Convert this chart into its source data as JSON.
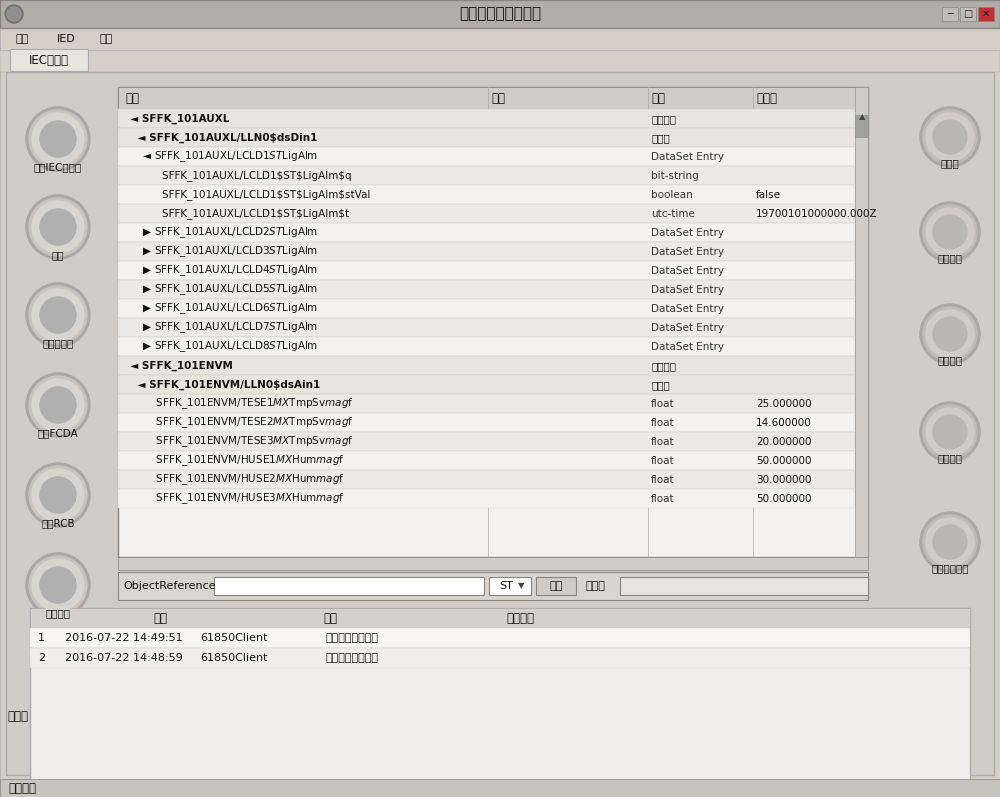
{
  "title": "智能变电站监控系统",
  "bg_color": "#d4d0c8",
  "content_bg": "#e8e4e0",
  "white": "#ffffff",
  "light_gray": "#f0eeec",
  "mid_gray": "#c8c4c0",
  "dark_gray": "#888480",
  "tab_label": "IEC客户端",
  "menu_items": [
    "开始",
    "IED",
    "功能"
  ],
  "left_btn_labels": [
    "连接IEC服务端",
    "刷新",
    "修改数据树",
    "修改FCDA",
    "修改RCB",
    "关闭连接"
  ],
  "right_btn_labels": [
    "测试项",
    "配置联动",
    "订阅告警",
    "反向测试",
    "导出测试报告"
  ],
  "table_headers": [
    "名称",
    "备注",
    "类型",
    "当前值"
  ],
  "table_rows": [
    [
      "  ◄ SFFK_101AUXL",
      "",
      "逻辑设备",
      ""
    ],
    [
      "    ◄ SFFK_101AUXL/LLN0$dsDin1",
      "",
      "数据集",
      ""
    ],
    [
      "      ◄ SFFK_101AUXL/LCLD1$ST$LigAlm",
      "",
      "DataSet Entry",
      ""
    ],
    [
      "            SFFK_101AUXL/LCLD1$ST$LigAlm$q",
      "",
      "bit-string",
      ""
    ],
    [
      "            SFFK_101AUXL/LCLD1$ST$LigAlm$stVal",
      "",
      "boolean",
      "false"
    ],
    [
      "            SFFK_101AUXL/LCLD1$ST$LigAlm$t",
      "",
      "utc-time",
      "19700101000000.000Z"
    ],
    [
      "      ▶ SFFK_101AUXL/LCLD2$ST$LigAlm",
      "",
      "DataSet Entry",
      ""
    ],
    [
      "      ▶ SFFK_101AUXL/LCLD3$ST$LigAlm",
      "",
      "DataSet Entry",
      ""
    ],
    [
      "      ▶ SFFK_101AUXL/LCLD4$ST$LigAlm",
      "",
      "DataSet Entry",
      ""
    ],
    [
      "      ▶ SFFK_101AUXL/LCLD5$ST$LigAlm",
      "",
      "DataSet Entry",
      ""
    ],
    [
      "      ▶ SFFK_101AUXL/LCLD6$ST$LigAlm",
      "",
      "DataSet Entry",
      ""
    ],
    [
      "      ▶ SFFK_101AUXL/LCLD7$ST$LigAlm",
      "",
      "DataSet Entry",
      ""
    ],
    [
      "      ▶ SFFK_101AUXL/LCLD8$ST$LigAlm",
      "",
      "DataSet Entry",
      ""
    ],
    [
      "  ◄ SFFK_101ENVM",
      "",
      "逻辑设备",
      ""
    ],
    [
      "    ◄ SFFK_101ENVM/LLN0$dsAin1",
      "",
      "数据集",
      ""
    ],
    [
      "          SFFK_101ENVM/TESE1$MX$TmpSv$mag$f",
      "",
      "float",
      "25.000000"
    ],
    [
      "          SFFK_101ENVM/TESE2$MX$TmpSv$mag$f",
      "",
      "float",
      "14.600000"
    ],
    [
      "          SFFK_101ENVM/TESE3$MX$TmpSv$mag$f",
      "",
      "float",
      "20.000000"
    ],
    [
      "          SFFK_101ENVM/HUSE1$MX$Hum$mag$f",
      "",
      "float",
      "50.000000"
    ],
    [
      "          SFFK_101ENVM/HUSE2$MX$Hum$mag$f",
      "",
      "float",
      "30.000000"
    ],
    [
      "          SFFK_101ENVM/HUSE3$MX$Hum$mag$f",
      "",
      "float",
      "50.000000"
    ]
  ],
  "row_bold_indices": [
    0,
    1,
    13,
    14
  ],
  "log_rows": [
    [
      "1",
      "2016-07-22 14:49:51",
      "61850Client",
      "数据集加载完成！"
    ],
    [
      "2",
      "2016-07-22 14:48:59",
      "61850Client",
      "数据树加载完成！"
    ]
  ],
  "status_bar_text": "准备就绪",
  "object_ref_label": "ObjectReference",
  "dropdown_label": "ST",
  "query_btn": "查询",
  "result_label": "结果：",
  "output_label": "输出："
}
